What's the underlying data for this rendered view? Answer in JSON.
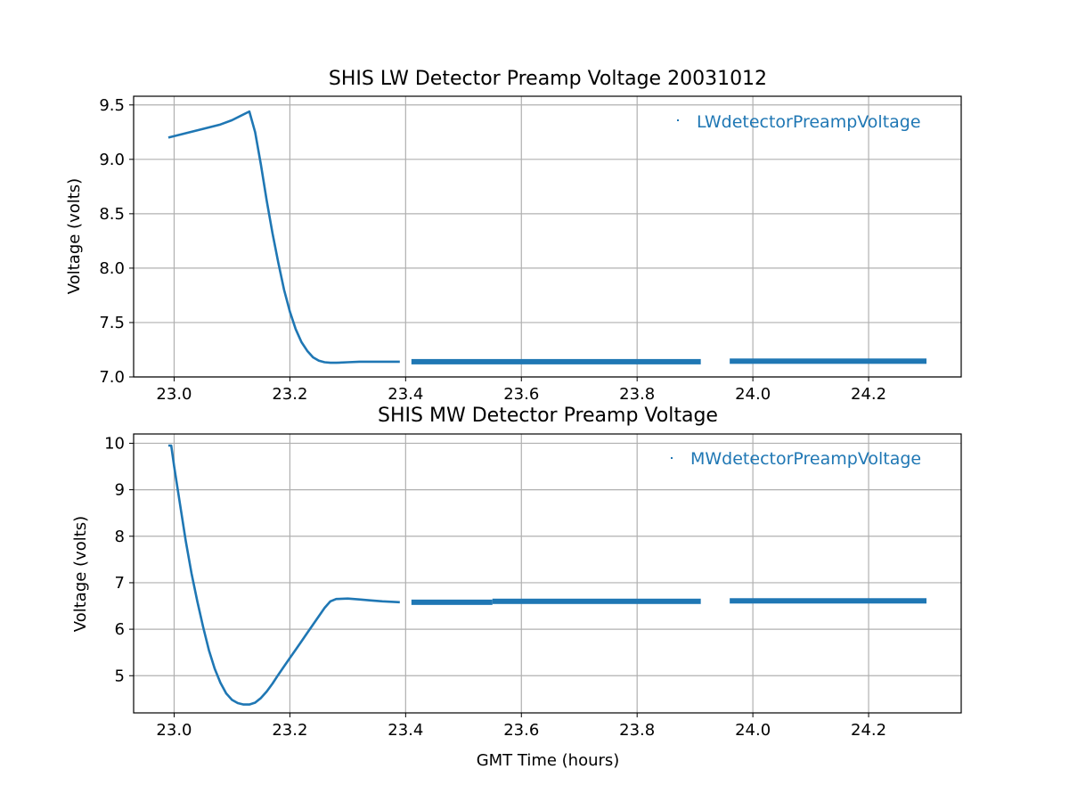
{
  "figure": {
    "series_color": "#1f77b4"
  },
  "chart_data": [
    {
      "type": "scatter",
      "title": "SHIS LW Detector Preamp Voltage 20031012",
      "xlabel": "",
      "ylabel": "Voltage (volts)",
      "xlim": [
        22.93,
        24.36
      ],
      "ylim": [
        7.0,
        9.58
      ],
      "xticks": [
        "23.0",
        "23.2",
        "23.4",
        "23.6",
        "23.8",
        "24.0",
        "24.2"
      ],
      "yticks": [
        "7.0",
        "7.5",
        "8.0",
        "8.5",
        "9.0",
        "9.5"
      ],
      "grid": true,
      "legend_position": "top-right",
      "series": [
        {
          "name": "LWdetectorPreampVoltage",
          "color": "#1f77b4",
          "points": [
            [
              22.99,
              9.2
            ],
            [
              23.02,
              9.24
            ],
            [
              23.05,
              9.28
            ],
            [
              23.08,
              9.32
            ],
            [
              23.1,
              9.36
            ],
            [
              23.13,
              9.44
            ],
            [
              23.14,
              9.25
            ],
            [
              23.15,
              8.95
            ],
            [
              23.16,
              8.62
            ],
            [
              23.17,
              8.32
            ],
            [
              23.18,
              8.05
            ],
            [
              23.19,
              7.8
            ],
            [
              23.2,
              7.6
            ],
            [
              23.21,
              7.44
            ],
            [
              23.22,
              7.32
            ],
            [
              23.23,
              7.24
            ],
            [
              23.24,
              7.18
            ],
            [
              23.25,
              7.15
            ],
            [
              23.26,
              7.135
            ],
            [
              23.27,
              7.13
            ],
            [
              23.28,
              7.13
            ],
            [
              23.3,
              7.135
            ],
            [
              23.32,
              7.14
            ],
            [
              23.35,
              7.14
            ],
            [
              23.39,
              7.14
            ]
          ],
          "segments": [
            {
              "x": [
                23.41,
                23.91
              ],
              "y": 7.14
            },
            {
              "x": [
                23.96,
                24.3
              ],
              "y": 7.145
            }
          ]
        }
      ]
    },
    {
      "type": "scatter",
      "title": "SHIS MW Detector Preamp Voltage",
      "xlabel": "GMT Time (hours)",
      "ylabel": "Voltage (volts)",
      "xlim": [
        22.93,
        24.36
      ],
      "ylim": [
        4.2,
        10.2
      ],
      "xticks": [
        "23.0",
        "23.2",
        "23.4",
        "23.6",
        "23.8",
        "24.0",
        "24.2"
      ],
      "yticks": [
        "5",
        "6",
        "7",
        "8",
        "9",
        "10"
      ],
      "grid": true,
      "legend_position": "top-right",
      "series": [
        {
          "name": "MWdetectorPreampVoltage",
          "color": "#1f77b4",
          "points": [
            [
              22.99,
              9.95
            ],
            [
              22.995,
              9.95
            ],
            [
              23.0,
              9.5
            ],
            [
              23.01,
              8.7
            ],
            [
              23.02,
              7.9
            ],
            [
              23.03,
              7.2
            ],
            [
              23.04,
              6.6
            ],
            [
              23.05,
              6.05
            ],
            [
              23.06,
              5.55
            ],
            [
              23.07,
              5.15
            ],
            [
              23.08,
              4.85
            ],
            [
              23.09,
              4.62
            ],
            [
              23.1,
              4.48
            ],
            [
              23.11,
              4.41
            ],
            [
              23.12,
              4.38
            ],
            [
              23.13,
              4.38
            ],
            [
              23.14,
              4.42
            ],
            [
              23.15,
              4.52
            ],
            [
              23.16,
              4.66
            ],
            [
              23.17,
              4.83
            ],
            [
              23.18,
              5.02
            ],
            [
              23.19,
              5.2
            ],
            [
              23.2,
              5.38
            ],
            [
              23.21,
              5.56
            ],
            [
              23.22,
              5.74
            ],
            [
              23.23,
              5.92
            ],
            [
              23.24,
              6.1
            ],
            [
              23.25,
              6.28
            ],
            [
              23.26,
              6.46
            ],
            [
              23.27,
              6.6
            ],
            [
              23.28,
              6.65
            ],
            [
              23.3,
              6.66
            ],
            [
              23.32,
              6.64
            ],
            [
              23.34,
              6.62
            ],
            [
              23.36,
              6.6
            ],
            [
              23.39,
              6.58
            ]
          ],
          "segments": [
            {
              "x": [
                23.41,
                23.55
              ],
              "y": 6.58
            },
            {
              "x": [
                23.55,
                23.91
              ],
              "y": 6.6
            },
            {
              "x": [
                23.96,
                24.3
              ],
              "y": 6.61
            }
          ]
        }
      ]
    }
  ]
}
